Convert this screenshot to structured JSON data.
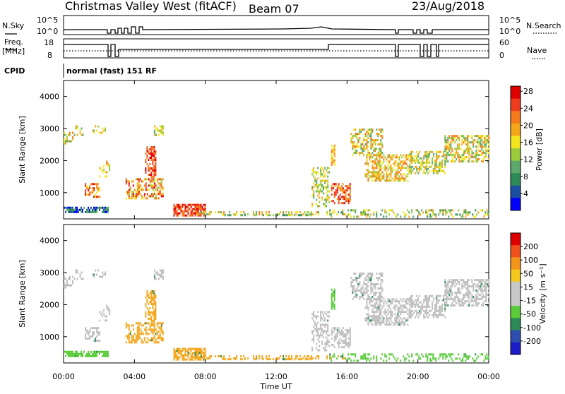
{
  "header": {
    "radar": "Christmas Valley West (fitACF)",
    "beam": "Beam 07",
    "date": "23/Aug/2018"
  },
  "panels": {
    "nsky": {
      "label": "N.Sky",
      "ticks": [
        "10^5",
        "10^0"
      ]
    },
    "nsearch": {
      "label": "N.Search",
      "ticks": [
        "10^5",
        "10^0"
      ]
    },
    "freq": {
      "label_line1": "Freq.",
      "label_line2": "[MHz]",
      "ticks": [
        "18",
        "8"
      ]
    },
    "nave": {
      "label": "Nave",
      "ticks": [
        "60",
        "0"
      ]
    },
    "cpid": {
      "label": "CPID",
      "value": "normal (fast) 151 RF"
    }
  },
  "colors": {
    "power_scale": [
      "#0000ff",
      "#1c4fa3",
      "#2e8b57",
      "#5aa86a",
      "#9ccc3a",
      "#f5e61c",
      "#f5a71c",
      "#f57a1c",
      "#f03c1c",
      "#e00000"
    ],
    "velocity_scale": [
      "#1c1cc8",
      "#2e4fb0",
      "#2e8b57",
      "#5acc3a",
      "#c8c8c8",
      "#c8c8c8",
      "#f5c81c",
      "#f5961c",
      "#f0501c",
      "#e00000"
    ],
    "gray": "#bebebe"
  },
  "chart_data": [
    {
      "type": "heatmap",
      "name": "power",
      "ylabel": "Slant Range [km]",
      "xlabel": "Time UT",
      "x_ticks": [
        "00:00",
        "04:00",
        "08:00",
        "12:00",
        "16:00",
        "20:00",
        "00:00"
      ],
      "y_ticks": [
        "1000",
        "2000",
        "3000",
        "4000"
      ],
      "xlim_hours": [
        0,
        24
      ],
      "ylim_km": [
        180,
        4500
      ],
      "colorbar": {
        "label": "Power [dB]",
        "ticks": [
          "4",
          "8",
          "12",
          "16",
          "20",
          "24",
          "28"
        ],
        "range": [
          0,
          30
        ]
      }
    },
    {
      "type": "heatmap",
      "name": "velocity",
      "ylabel": "Slant Range [km]",
      "xlabel": "Time UT",
      "x_ticks": [
        "00:00",
        "04:00",
        "08:00",
        "12:00",
        "16:00",
        "20:00",
        "00:00"
      ],
      "y_ticks": [
        "1000",
        "2000",
        "3000",
        "4000"
      ],
      "xlim_hours": [
        0,
        24
      ],
      "ylim_km": [
        180,
        4500
      ],
      "colorbar": {
        "label": "Velocity [m s⁻¹]",
        "ticks": [
          "200",
          "100",
          "50",
          "15",
          "-15",
          "-50",
          "-100",
          "-200"
        ]
      }
    }
  ]
}
